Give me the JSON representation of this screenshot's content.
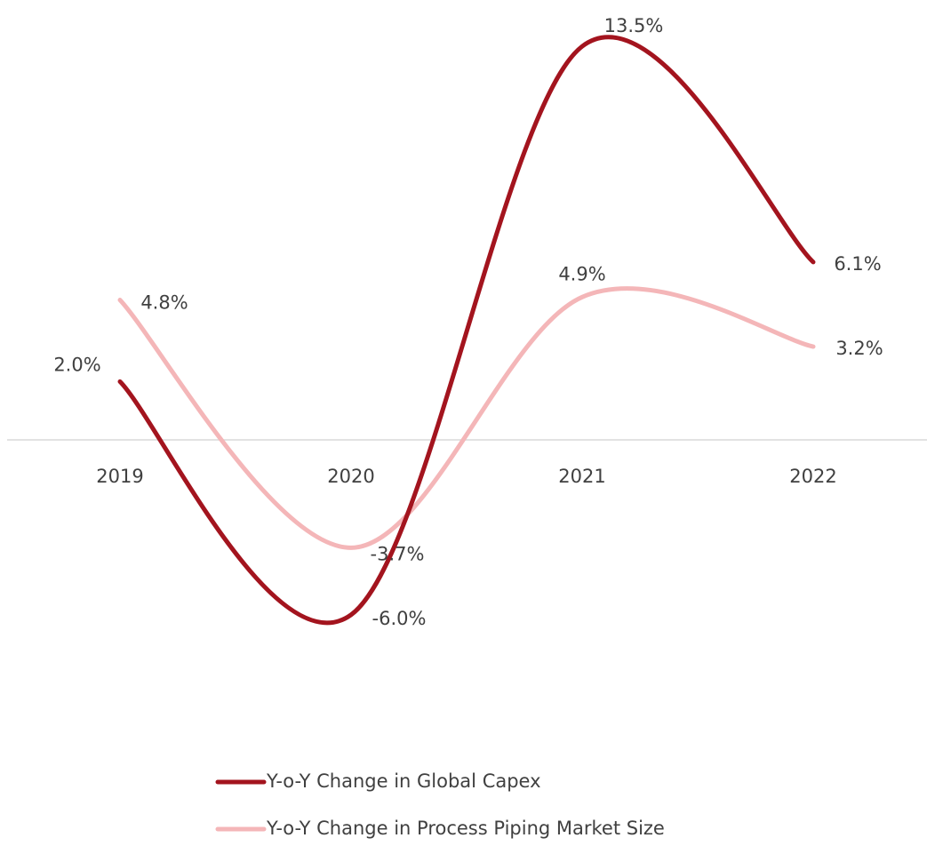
{
  "chart_data": {
    "type": "line",
    "categories": [
      "2019",
      "2020",
      "2021",
      "2022"
    ],
    "series": [
      {
        "name": "Y-o-Y Change in Global Capex",
        "color": "#a3141e",
        "values": [
          2.0,
          -6.0,
          13.5,
          6.1
        ],
        "value_labels": [
          "2.0%",
          "-6.0%",
          "13.5%",
          "6.1%"
        ]
      },
      {
        "name": "Y-o-Y Change in Process Piping Market Size",
        "color": "#f4b6b8",
        "values": [
          4.8,
          -3.7,
          4.9,
          3.2
        ],
        "value_labels": [
          "4.8%",
          "-3.7%",
          "4.9%",
          "3.2%"
        ]
      }
    ],
    "ylim": [
      -8,
      15
    ],
    "smooth": true,
    "legend": "bottom"
  }
}
